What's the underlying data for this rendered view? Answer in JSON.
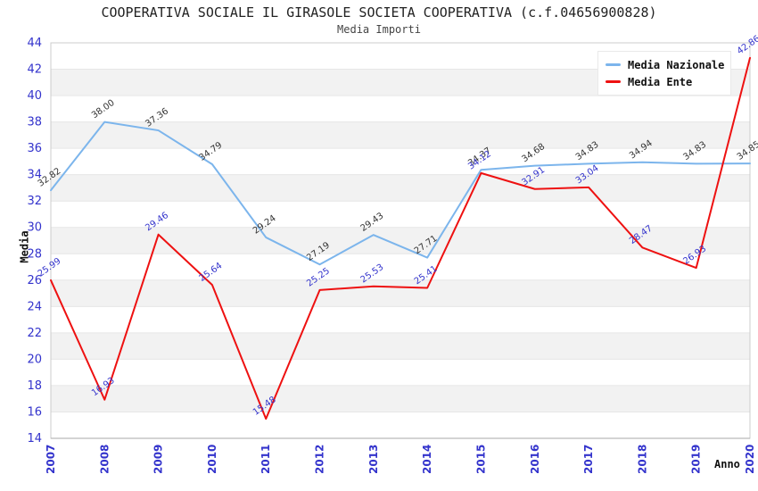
{
  "chart_data": {
    "type": "line",
    "title": "COOPERATIVA SOCIALE IL GIRASOLE SOCIETA COOPERATIVA (c.f.04656900828)",
    "subtitle": "Media Importi",
    "xlabel": "Anno",
    "ylabel": "Media",
    "categories": [
      "2007",
      "2008",
      "2009",
      "2010",
      "2011",
      "2012",
      "2013",
      "2014",
      "2015",
      "2016",
      "2017",
      "2018",
      "2019",
      "2020"
    ],
    "ylim": [
      14,
      44
    ],
    "ytick_step": 2,
    "grid": true,
    "legend_position": "top-right",
    "series": [
      {
        "name": "Media Nazionale",
        "color": "#7cb5ec",
        "label_color": "#333333",
        "values": [
          32.82,
          38.0,
          37.36,
          34.79,
          29.24,
          27.19,
          29.43,
          27.71,
          34.37,
          34.68,
          34.83,
          34.94,
          34.83,
          34.85
        ]
      },
      {
        "name": "Media Ente",
        "color": "#ee1111",
        "label_color": "#3333cc",
        "values": [
          25.99,
          16.93,
          29.46,
          25.64,
          15.48,
          25.25,
          25.53,
          25.41,
          34.12,
          32.91,
          33.04,
          28.47,
          26.93,
          42.86
        ]
      }
    ],
    "colors": {
      "band": "#f2f2f2",
      "grid": "#e6e6e6",
      "border": "#cccccc",
      "axis_line": "#aaaaaa",
      "tick_label": "#3333cc"
    }
  }
}
